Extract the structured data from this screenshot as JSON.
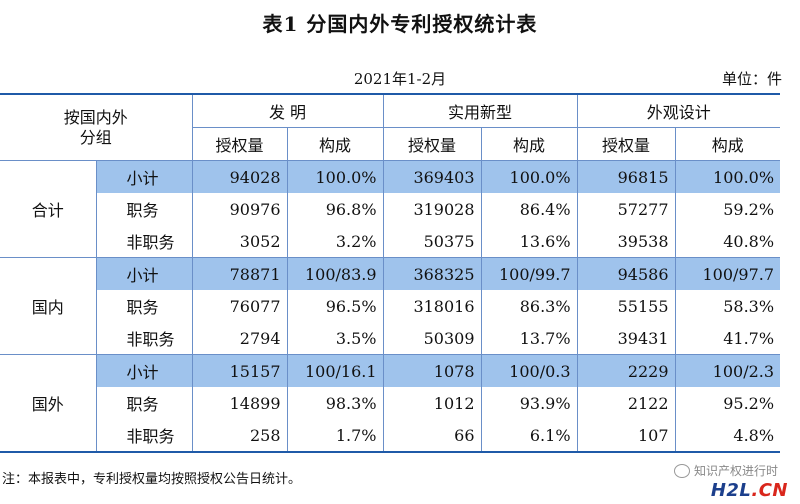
{
  "title": "表1  分国内外专利授权统计表",
  "subtitle": "2021年1-2月",
  "unit": "单位：件",
  "header": {
    "corner": [
      "按国内外",
      "分组"
    ],
    "groups": [
      "发  明",
      "实用新型",
      "外观设计"
    ],
    "sub": [
      "授权量",
      "构成",
      "授权量",
      "构成",
      "授权量",
      "构成"
    ]
  },
  "sections": [
    {
      "name": "合计",
      "rows": [
        {
          "label": "小计",
          "cells": [
            "94028",
            "100.0%",
            "369403",
            "100.0%",
            "96815",
            "100.0%"
          ]
        },
        {
          "label": "职务",
          "cells": [
            "90976",
            "96.8%",
            "319028",
            "86.4%",
            "57277",
            "59.2%"
          ]
        },
        {
          "label": "非职务",
          "cells": [
            "3052",
            "3.2%",
            "50375",
            "13.6%",
            "39538",
            "40.8%"
          ]
        }
      ]
    },
    {
      "name": "国内",
      "rows": [
        {
          "label": "小计",
          "cells": [
            "78871",
            "100/83.9",
            "368325",
            "100/99.7",
            "94586",
            "100/97.7"
          ]
        },
        {
          "label": "职务",
          "cells": [
            "76077",
            "96.5%",
            "318016",
            "86.3%",
            "55155",
            "58.3%"
          ]
        },
        {
          "label": "非职务",
          "cells": [
            "2794",
            "3.5%",
            "50309",
            "13.7%",
            "39431",
            "41.7%"
          ]
        }
      ]
    },
    {
      "name": "国外",
      "rows": [
        {
          "label": "小计",
          "cells": [
            "15157",
            "100/16.1",
            "1078",
            "100/0.3",
            "2229",
            "100/2.3"
          ]
        },
        {
          "label": "职务",
          "cells": [
            "14899",
            "98.3%",
            "1012",
            "93.9%",
            "2122",
            "95.2%"
          ]
        },
        {
          "label": "非职务",
          "cells": [
            "258",
            "1.7%",
            "66",
            "6.1%",
            "107",
            "4.8%"
          ]
        }
      ]
    }
  ],
  "note": "注：本报表中，专利授权量均按照授权公告日统计。",
  "watermark": "知识产权进行时",
  "logo": {
    "part1": "H2L",
    "part2": ".CN"
  },
  "colors": {
    "highlight": "#9fc3ec",
    "rule": "#1f5aa8"
  }
}
